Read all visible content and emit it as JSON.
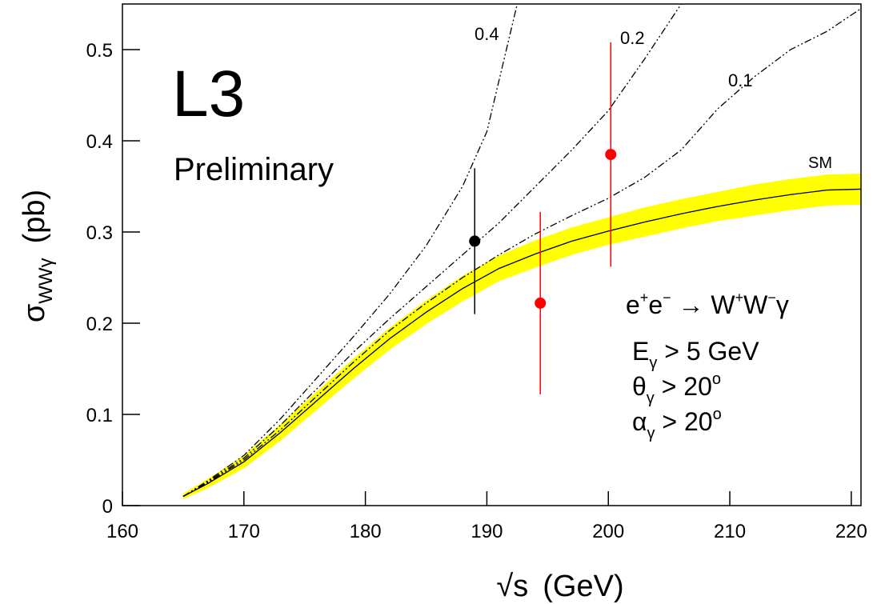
{
  "chart_data": {
    "type": "line",
    "title": "L3",
    "subtitle": "Preliminary",
    "x_label": [
      "√s",
      "(GeV)"
    ],
    "y_label": [
      "σ",
      "WWγ",
      "(pb)"
    ],
    "xlim": [
      160,
      220.8
    ],
    "ylim": [
      0,
      0.55
    ],
    "xticks": [
      160,
      170,
      180,
      190,
      200,
      210,
      220
    ],
    "yticks": [
      0,
      0.1,
      0.2,
      0.3,
      0.4,
      0.5
    ],
    "band": {
      "color": "#ffff00",
      "x": [
        165,
        167,
        170,
        173,
        176,
        179,
        182,
        185,
        188,
        191,
        194,
        197,
        200,
        203,
        206,
        209,
        212,
        215,
        218,
        220.8
      ],
      "low": [
        0.007,
        0.019,
        0.041,
        0.071,
        0.105,
        0.139,
        0.171,
        0.199,
        0.224,
        0.246,
        0.261,
        0.275,
        0.286,
        0.295,
        0.304,
        0.312,
        0.318,
        0.324,
        0.329,
        0.33
      ],
      "high": [
        0.013,
        0.029,
        0.055,
        0.089,
        0.125,
        0.161,
        0.195,
        0.225,
        0.252,
        0.274,
        0.291,
        0.305,
        0.316,
        0.327,
        0.336,
        0.344,
        0.352,
        0.358,
        0.363,
        0.364
      ]
    },
    "curves": [
      {
        "label": "SM",
        "color": "#000000",
        "dashed": false,
        "x": [
          165,
          167,
          170,
          173,
          176,
          179,
          182,
          185,
          188,
          191,
          194,
          197,
          200,
          203,
          206,
          209,
          212,
          215,
          218,
          220.8
        ],
        "values": [
          0.01,
          0.024,
          0.048,
          0.08,
          0.115,
          0.15,
          0.183,
          0.212,
          0.238,
          0.26,
          0.276,
          0.29,
          0.301,
          0.311,
          0.32,
          0.328,
          0.335,
          0.341,
          0.346,
          0.347
        ]
      },
      {
        "label": "0.1",
        "color": "#000000",
        "dashed": true,
        "x": [
          165,
          167,
          170,
          173,
          176,
          179,
          182,
          185,
          188,
          191,
          194,
          197,
          200,
          203,
          206,
          209,
          212,
          215,
          218,
          220.8
        ],
        "values": [
          0.01,
          0.025,
          0.05,
          0.083,
          0.12,
          0.157,
          0.192,
          0.222,
          0.25,
          0.275,
          0.298,
          0.318,
          0.337,
          0.36,
          0.39,
          0.435,
          0.47,
          0.5,
          0.52,
          0.545
        ]
      },
      {
        "label": "0.2",
        "color": "#000000",
        "dashed": true,
        "x": [
          165,
          167,
          170,
          173,
          176,
          179,
          182,
          185,
          188,
          191,
          194,
          197,
          200,
          203,
          206
        ],
        "values": [
          0.01,
          0.026,
          0.052,
          0.088,
          0.128,
          0.168,
          0.205,
          0.24,
          0.275,
          0.31,
          0.35,
          0.39,
          0.433,
          0.49,
          0.55
        ]
      },
      {
        "label": "0.4",
        "color": "#000000",
        "dashed": true,
        "x": [
          165,
          167,
          170,
          173,
          176,
          179,
          182,
          185,
          188,
          190,
          192.5
        ],
        "values": [
          0.01,
          0.027,
          0.055,
          0.095,
          0.14,
          0.185,
          0.232,
          0.285,
          0.35,
          0.41,
          0.55
        ]
      }
    ],
    "points": {
      "x": [
        189,
        194.4,
        200.2
      ],
      "values": [
        0.29,
        0.222,
        0.385
      ],
      "errors": [
        0.08,
        0.1,
        0.123
      ],
      "colors": [
        "#000000",
        "#ff0000",
        "#ff0000"
      ]
    },
    "reaction": [
      "e",
      "+",
      "e",
      "−",
      " → W",
      "+",
      "W",
      "−",
      "γ"
    ],
    "cuts": [
      [
        "E",
        "γ",
        " > 5 GeV"
      ],
      [
        "θ",
        "γ",
        " > 20",
        "o"
      ],
      [
        "α",
        "γ",
        " > 20",
        "o"
      ]
    ]
  }
}
